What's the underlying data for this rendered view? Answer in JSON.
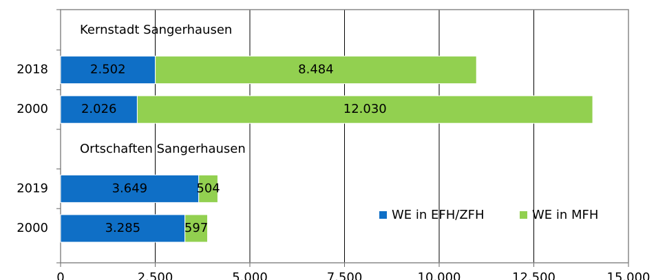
{
  "chart_data": {
    "type": "stacked-barh",
    "categories": [
      null,
      "2018",
      "2000",
      null,
      "2019",
      "2000"
    ],
    "annotations": [
      {
        "text": "Kernstadt Sangerhausen",
        "row": 0
      },
      {
        "text": "Ortschaften Sangerhausen",
        "row": 3
      }
    ],
    "series": [
      {
        "name": "WE in EFH/ZFH",
        "color": "#0f6fc6",
        "values": [
          null,
          2502,
          2026,
          null,
          3649,
          3285
        ],
        "value_labels": [
          null,
          "2.502",
          "2.026",
          null,
          "3.649",
          "3.285"
        ]
      },
      {
        "name": "WE in MFH",
        "color": "#92d050",
        "values": [
          null,
          8484,
          12030,
          null,
          504,
          597
        ],
        "value_labels": [
          null,
          "8.484",
          "12.030",
          null,
          "504",
          "597"
        ]
      }
    ],
    "xlim": [
      0,
      15000
    ],
    "xticks": [
      0,
      {
        "value": 2500,
        "label": "2.500"
      },
      {
        "value": 5000,
        "label": "5.000"
      },
      {
        "value": 7500,
        "label": "7.500"
      },
      {
        "value": 10000,
        "label": "10.000"
      },
      {
        "value": 12500,
        "label": "12.500"
      },
      {
        "value": 15000,
        "label": "15.000"
      }
    ],
    "grid": true,
    "legend": "lower right"
  }
}
